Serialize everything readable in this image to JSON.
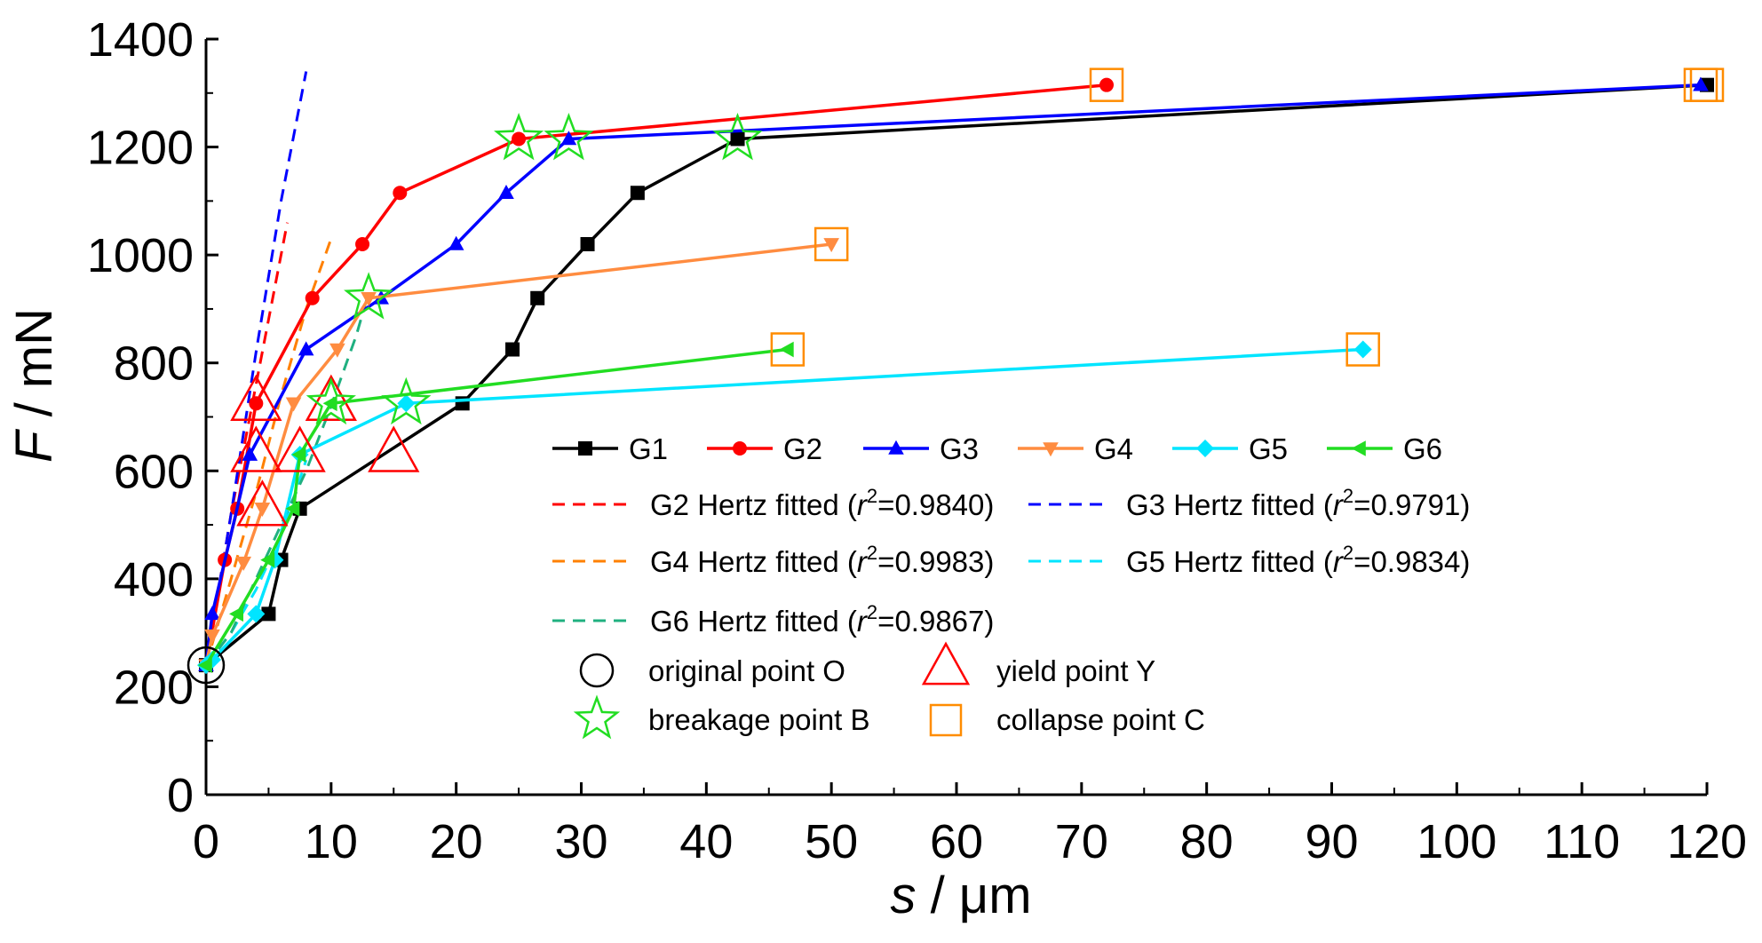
{
  "chart_data": {
    "type": "line",
    "xlabel": {
      "var": "s",
      "unit": " / μm"
    },
    "ylabel": {
      "var": "F",
      "unit": " / mN"
    },
    "xlim": [
      0,
      120
    ],
    "ylim": [
      0,
      1400
    ],
    "xticks": [
      "0",
      "10",
      "20",
      "30",
      "40",
      "50",
      "60",
      "70",
      "80",
      "90",
      "100",
      "110",
      "120"
    ],
    "yticks": [
      "0",
      "200",
      "400",
      "600",
      "800",
      "1000",
      "1200",
      "1400"
    ],
    "grid": false,
    "legend_position": "center-right",
    "series": [
      {
        "name": "G1",
        "color": "#000000",
        "marker": "square",
        "x": [
          0,
          5,
          6,
          7.5,
          20.5,
          24.5,
          26.5,
          30.5,
          34.5,
          42.5,
          120
        ],
        "y": [
          240,
          335,
          435,
          530,
          725,
          825,
          920,
          1020,
          1115,
          1215,
          1315
        ]
      },
      {
        "name": "G2",
        "color": "#ff0000",
        "marker": "circle",
        "x": [
          0,
          1.5,
          2.5,
          4,
          8.5,
          12.5,
          15.5,
          25,
          72
        ],
        "y": [
          240,
          435,
          530,
          725,
          920,
          1020,
          1115,
          1215,
          1315
        ]
      },
      {
        "name": "G3",
        "color": "#0000ff",
        "marker": "triangle-up",
        "x": [
          0,
          0.5,
          3.5,
          8,
          14,
          20,
          24,
          29,
          119.5
        ],
        "y": [
          240,
          335,
          630,
          825,
          920,
          1020,
          1115,
          1215,
          1315
        ]
      },
      {
        "name": "G4",
        "color": "#ff8c40",
        "marker": "triangle-down",
        "x": [
          0,
          0.5,
          3,
          4.5,
          7,
          10.5,
          13,
          50
        ],
        "y": [
          240,
          295,
          430,
          530,
          725,
          825,
          920,
          1020
        ]
      },
      {
        "name": "G5",
        "color": "#00e5ff",
        "marker": "diamond",
        "x": [
          0,
          0.5,
          4,
          5.5,
          7.5,
          16,
          92.5
        ],
        "y": [
          240,
          250,
          335,
          435,
          630,
          725,
          825
        ]
      },
      {
        "name": "G6",
        "color": "#22dd22",
        "marker": "triangle-left",
        "x": [
          0,
          2.5,
          5,
          7,
          7.5,
          10,
          46.5
        ],
        "y": [
          240,
          335,
          435,
          530,
          630,
          725,
          825
        ]
      }
    ],
    "fits": [
      {
        "name": "G2 Hertz fitted",
        "r2": "0.9840",
        "color": "#ff0000",
        "x": [
          0,
          2,
          4,
          6.5
        ],
        "y": [
          240,
          520,
          760,
          1060
        ]
      },
      {
        "name": "G3 Hertz fitted",
        "r2": "0.9791",
        "color": "#0000ff",
        "x": [
          0,
          2,
          4,
          6,
          8
        ],
        "y": [
          240,
          520,
          820,
          1100,
          1340
        ]
      },
      {
        "name": "G4 Hertz fitted",
        "r2": "0.9983",
        "color": "#ff8000",
        "x": [
          0,
          2,
          4,
          6,
          8,
          10
        ],
        "y": [
          240,
          400,
          560,
          740,
          900,
          1030
        ]
      },
      {
        "name": "G5 Hertz fitted",
        "r2": "0.9834",
        "color": "#00e5ff",
        "x": [
          0,
          2,
          4,
          6,
          8
        ],
        "y": [
          240,
          300,
          380,
          480,
          620
        ]
      },
      {
        "name": "G6 Hertz fitted",
        "r2": "0.9867",
        "color": "#20b080",
        "x": [
          0,
          2,
          4,
          6,
          8,
          10,
          12,
          13
        ],
        "y": [
          240,
          300,
          400,
          500,
          600,
          720,
          850,
          930
        ]
      }
    ],
    "special_points": {
      "original": {
        "label": "original point O",
        "points": [
          [
            0,
            240
          ]
        ]
      },
      "yield": {
        "label": "yield point Y",
        "points": [
          [
            4,
            725
          ],
          [
            4,
            630
          ],
          [
            4.5,
            530
          ],
          [
            7.5,
            630
          ],
          [
            10,
            725
          ],
          [
            15,
            630
          ]
        ]
      },
      "breakage": {
        "label": "breakage point B",
        "points": [
          [
            25,
            1215
          ],
          [
            29,
            1215
          ],
          [
            42.5,
            1215
          ],
          [
            13,
            920
          ],
          [
            10,
            725
          ],
          [
            16,
            725
          ]
        ]
      },
      "collapse": {
        "label": "collapse point C",
        "points": [
          [
            72,
            1315
          ],
          [
            119.5,
            1315
          ],
          [
            120,
            1315
          ],
          [
            50,
            1020
          ],
          [
            46.5,
            825
          ],
          [
            92.5,
            825
          ]
        ]
      }
    }
  },
  "colors": {
    "yield_marker": "#ff0000",
    "breakage_marker": "#22dd22",
    "collapse_marker": "#ff8c00",
    "original_marker": "#000000"
  }
}
